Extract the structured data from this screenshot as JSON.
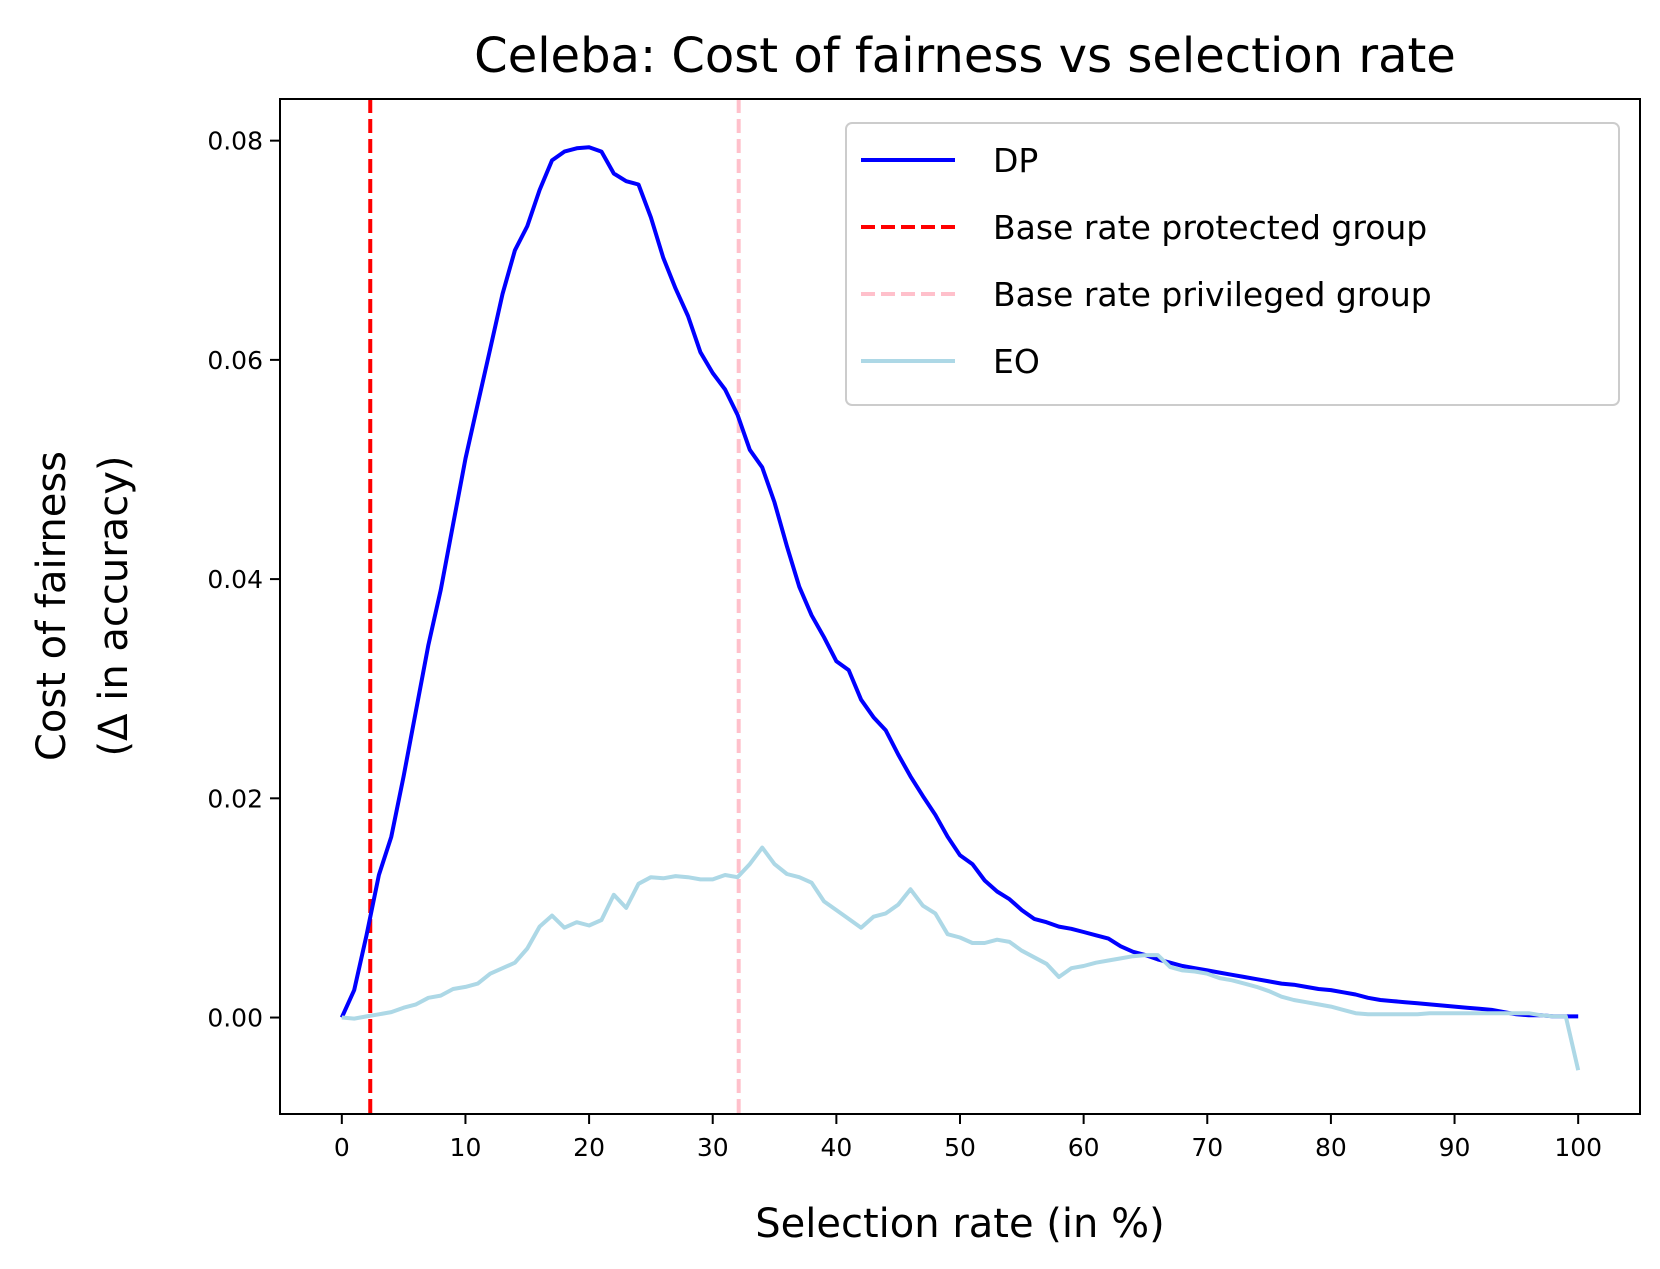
{
  "chart_data": {
    "type": "line",
    "title": "Celeba: Cost of fairness vs selection rate",
    "xlabel": "Selection rate (in %)",
    "ylabel_line1": "Cost of fairness",
    "ylabel_line2": "(Δ in accuracy)",
    "xlim": [
      -5,
      105
    ],
    "ylim": [
      -0.0088,
      0.0838
    ],
    "xticks": [
      0,
      10,
      20,
      30,
      40,
      50,
      60,
      70,
      80,
      90,
      100
    ],
    "xtick_labels": [
      "0",
      "10",
      "20",
      "30",
      "40",
      "50",
      "60",
      "70",
      "80",
      "90",
      "100"
    ],
    "yticks": [
      0.0,
      0.02,
      0.04,
      0.06,
      0.08
    ],
    "ytick_labels": [
      "0.00",
      "0.02",
      "0.04",
      "0.06",
      "0.08"
    ],
    "legend_position": "top-right",
    "series": [
      {
        "name": "DP",
        "color": "#0000ff",
        "style": "solid",
        "x": [
          0,
          1,
          2,
          3,
          4,
          5,
          6,
          7,
          8,
          9,
          10,
          11,
          12,
          13,
          14,
          15,
          16,
          17,
          18,
          19,
          20,
          21,
          22,
          23,
          24,
          25,
          26,
          27,
          28,
          29,
          30,
          31,
          32,
          33,
          34,
          35,
          36,
          37,
          38,
          39,
          40,
          41,
          42,
          43,
          44,
          45,
          46,
          47,
          48,
          49,
          50,
          51,
          52,
          53,
          54,
          55,
          56,
          57,
          58,
          59,
          60,
          61,
          62,
          63,
          64,
          65,
          66,
          67,
          68,
          69,
          70,
          71,
          72,
          73,
          74,
          75,
          76,
          77,
          78,
          79,
          80,
          81,
          82,
          83,
          84,
          85,
          86,
          87,
          88,
          89,
          90,
          91,
          92,
          93,
          94,
          95,
          96,
          97,
          98,
          99,
          100
        ],
        "values": [
          0.0,
          0.0025,
          0.0075,
          0.013,
          0.0165,
          0.022,
          0.028,
          0.034,
          0.039,
          0.045,
          0.051,
          0.056,
          0.061,
          0.066,
          0.07,
          0.0722,
          0.0755,
          0.0782,
          0.079,
          0.0793,
          0.0794,
          0.079,
          0.077,
          0.0763,
          0.076,
          0.073,
          0.0693,
          0.0665,
          0.064,
          0.0607,
          0.0588,
          0.0573,
          0.055,
          0.0518,
          0.0502,
          0.047,
          0.043,
          0.0393,
          0.0367,
          0.0347,
          0.0325,
          0.0317,
          0.029,
          0.0274,
          0.0262,
          0.024,
          0.022,
          0.0202,
          0.0185,
          0.0165,
          0.0148,
          0.014,
          0.0125,
          0.0115,
          0.0108,
          0.0098,
          0.009,
          0.0087,
          0.0083,
          0.0081,
          0.0078,
          0.0075,
          0.0072,
          0.0065,
          0.006,
          0.0057,
          0.0053,
          0.005,
          0.0047,
          0.0045,
          0.0043,
          0.0041,
          0.0039,
          0.0037,
          0.0035,
          0.0033,
          0.0031,
          0.003,
          0.0028,
          0.0026,
          0.0025,
          0.0023,
          0.0021,
          0.0018,
          0.0016,
          0.0015,
          0.0014,
          0.0013,
          0.0012,
          0.0011,
          0.001,
          0.0009,
          0.0008,
          0.0007,
          0.0005,
          0.0003,
          0.0002,
          0.0002,
          0.0001,
          0.0001,
          0.0001
        ]
      },
      {
        "name": "Base rate protected group",
        "color": "#ff0000",
        "style": "dashed",
        "vline_x": 2.3
      },
      {
        "name": "Base rate privileged group",
        "color": "#ffc0cb",
        "style": "dashed",
        "vline_x": 32.1
      },
      {
        "name": "EO",
        "color": "#add8e6",
        "style": "solid",
        "x": [
          0,
          1,
          2,
          3,
          4,
          5,
          6,
          7,
          8,
          9,
          10,
          11,
          12,
          13,
          14,
          15,
          16,
          17,
          18,
          19,
          20,
          21,
          22,
          23,
          24,
          25,
          26,
          27,
          28,
          29,
          30,
          31,
          32,
          33,
          34,
          35,
          36,
          37,
          38,
          39,
          40,
          41,
          42,
          43,
          44,
          45,
          46,
          47,
          48,
          49,
          50,
          51,
          52,
          53,
          54,
          55,
          56,
          57,
          58,
          59,
          60,
          61,
          62,
          63,
          64,
          65,
          66,
          67,
          68,
          69,
          70,
          71,
          72,
          73,
          74,
          75,
          76,
          77,
          78,
          79,
          80,
          81,
          82,
          83,
          84,
          85,
          86,
          87,
          88,
          89,
          90,
          91,
          92,
          93,
          94,
          95,
          96,
          97,
          98,
          99,
          100
        ],
        "values": [
          0.0,
          -0.0001,
          0.0001,
          0.0003,
          0.0005,
          0.0009,
          0.0012,
          0.0018,
          0.002,
          0.0026,
          0.0028,
          0.0031,
          0.004,
          0.0045,
          0.005,
          0.0063,
          0.0083,
          0.0093,
          0.0082,
          0.0087,
          0.0084,
          0.0089,
          0.0112,
          0.01,
          0.0122,
          0.0128,
          0.0127,
          0.0129,
          0.0128,
          0.0126,
          0.0126,
          0.013,
          0.0128,
          0.014,
          0.0155,
          0.014,
          0.0131,
          0.0128,
          0.0123,
          0.0106,
          0.0098,
          0.009,
          0.0082,
          0.0092,
          0.0095,
          0.0103,
          0.0117,
          0.0102,
          0.0095,
          0.0076,
          0.0073,
          0.0068,
          0.0068,
          0.0071,
          0.0069,
          0.0061,
          0.0055,
          0.0049,
          0.0037,
          0.0045,
          0.0047,
          0.005,
          0.0052,
          0.0054,
          0.0056,
          0.0057,
          0.0057,
          0.0046,
          0.0043,
          0.0042,
          0.004,
          0.0036,
          0.0034,
          0.0031,
          0.0028,
          0.0024,
          0.0019,
          0.0016,
          0.0014,
          0.0012,
          0.001,
          0.0007,
          0.0004,
          0.0003,
          0.0003,
          0.0003,
          0.0003,
          0.0003,
          0.0004,
          0.0004,
          0.0004,
          0.0004,
          0.0004,
          0.0004,
          0.0004,
          0.0004,
          0.0004,
          0.0002,
          0.0001,
          0.0001,
          -0.0048
        ]
      }
    ]
  }
}
